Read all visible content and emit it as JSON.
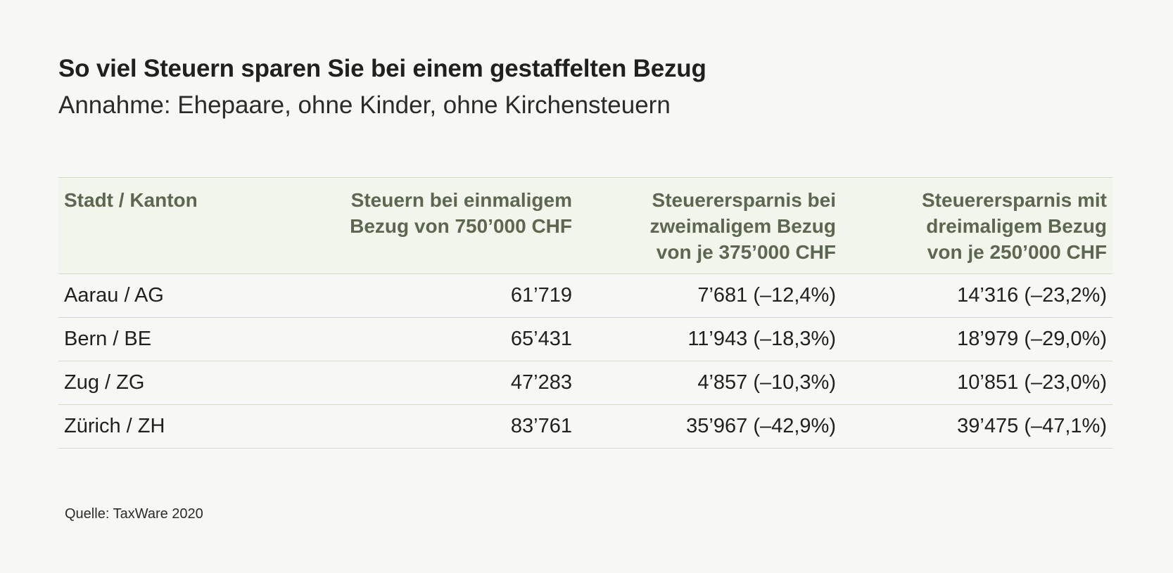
{
  "chart_data": {
    "type": "table",
    "title": "So viel Steuern sparen Sie bei einem gestaffelten Bezug",
    "subtitle": "Annahme: Ehepaare, ohne Kinder, ohne Kirchensteuern",
    "columns": [
      {
        "lines": [
          "Stadt / Kanton"
        ]
      },
      {
        "lines": [
          "Steuern bei einmaligem",
          "Bezug von 750’000 CHF"
        ]
      },
      {
        "lines": [
          "Steuerersparnis bei",
          "zweimaligem Bezug",
          "von je 375’000 CHF"
        ]
      },
      {
        "lines": [
          "Steuerersparnis mit",
          "dreimaligem Bezug",
          "von je 250’000 CHF"
        ]
      }
    ],
    "rows": [
      {
        "city": "Aarau / AG",
        "single": "61’719",
        "double": "7’681 (–12,4%)",
        "triple": "14’316 (–23,2%)"
      },
      {
        "city": "Bern / BE",
        "single": "65’431",
        "double": "11’943 (–18,3%)",
        "triple": "18’979 (–29,0%)"
      },
      {
        "city": "Zug / ZG",
        "single": "47’283",
        "double": "4’857 (–10,3%)",
        "triple": "10’851 (–23,0%)"
      },
      {
        "city": "Zürich / ZH",
        "single": "83’761",
        "double": "35’967 (–42,9%)",
        "triple": "39’475 (–47,1%)"
      }
    ],
    "source": "Quelle: TaxWare 2020"
  }
}
